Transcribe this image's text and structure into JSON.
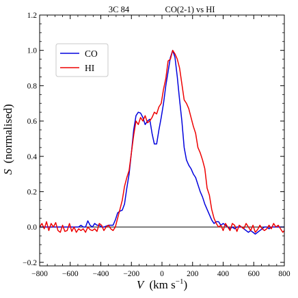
{
  "chart_data": {
    "type": "line",
    "title_left": "3C 84",
    "title_right": "CO(2-1) vs HI",
    "xlabel_var": "V",
    "xlabel_unit_base": "(km s",
    "xlabel_unit_sup": "−1",
    "xlabel_unit_end": ")",
    "ylabel_var": "S",
    "ylabel_rest": "(normalised)",
    "xlim": [
      -800,
      800
    ],
    "ylim": [
      -0.22,
      1.2
    ],
    "xticks": [
      -800,
      -600,
      -400,
      -200,
      0,
      200,
      400,
      600,
      800
    ],
    "xtick_labels": [
      "−800",
      "−600",
      "−400",
      "−200",
      "0",
      "200",
      "400",
      "600",
      "800"
    ],
    "yticks": [
      -0.2,
      0.0,
      0.2,
      0.4,
      0.6,
      0.8,
      1.0,
      1.2
    ],
    "ytick_labels": [
      "−0.2",
      "0.0",
      "0.2",
      "0.4",
      "0.6",
      "0.8",
      "1.0",
      "1.2"
    ],
    "zero_line": 0.0,
    "legend_position": "upper-left",
    "series": [
      {
        "name": "CO",
        "color": "#0000dd",
        "x": [
          -800,
          -785,
          -770,
          -755,
          -740,
          -725,
          -710,
          -695,
          -680,
          -665,
          -650,
          -635,
          -620,
          -605,
          -590,
          -575,
          -560,
          -545,
          -530,
          -515,
          -500,
          -485,
          -470,
          -455,
          -440,
          -425,
          -410,
          -395,
          -380,
          -365,
          -350,
          -335,
          -320,
          -305,
          -290,
          -275,
          -260,
          -245,
          -230,
          -215,
          -200,
          -185,
          -170,
          -155,
          -140,
          -125,
          -110,
          -95,
          -80,
          -65,
          -50,
          -35,
          -20,
          -5,
          10,
          25,
          40,
          55,
          70,
          85,
          100,
          115,
          130,
          145,
          160,
          175,
          190,
          205,
          220,
          235,
          250,
          265,
          280,
          295,
          310,
          325,
          340,
          355,
          370,
          385,
          400,
          415,
          430,
          445,
          460,
          475,
          490,
          505,
          520,
          535,
          550,
          565,
          580,
          595,
          610,
          625,
          640,
          655,
          670,
          685,
          700,
          715,
          730,
          745,
          760,
          775,
          790,
          800
        ],
        "y": [
          0.0,
          0.0,
          0.0,
          0.0,
          0.0,
          0.0,
          0.0,
          0.0,
          0.0,
          0.0,
          0.0,
          0.0,
          0.0,
          0.0,
          0.0,
          0.0,
          0.0,
          0.0,
          0.01,
          0.0,
          0.0,
          0.035,
          0.01,
          0.0,
          0.02,
          0.01,
          0.01,
          0.0,
          0.0,
          0.005,
          0.01,
          0.01,
          0.01,
          0.04,
          0.08,
          0.09,
          0.095,
          0.13,
          0.22,
          0.3,
          0.42,
          0.55,
          0.63,
          0.65,
          0.645,
          0.62,
          0.58,
          0.6,
          0.61,
          0.53,
          0.47,
          0.47,
          0.55,
          0.62,
          0.7,
          0.8,
          0.88,
          0.96,
          1.0,
          0.96,
          0.85,
          0.72,
          0.6,
          0.45,
          0.38,
          0.35,
          0.33,
          0.3,
          0.28,
          0.24,
          0.2,
          0.17,
          0.13,
          0.1,
          0.07,
          0.04,
          0.02,
          0.03,
          0.03,
          0.01,
          0.02,
          0.01,
          0.0,
          -0.01,
          0.0,
          -0.01,
          0.0,
          0.0,
          0.0,
          -0.01,
          -0.02,
          -0.03,
          -0.02,
          -0.03,
          -0.04,
          -0.03,
          -0.02,
          -0.01,
          0.0,
          0.0,
          -0.01,
          0.0,
          0.0,
          0.0,
          0.0,
          0.0,
          0.0,
          0.0
        ]
      },
      {
        "name": "HI",
        "color": "#ee0000",
        "x": [
          -800,
          -785,
          -770,
          -755,
          -740,
          -725,
          -710,
          -695,
          -680,
          -665,
          -650,
          -635,
          -620,
          -605,
          -590,
          -575,
          -560,
          -545,
          -530,
          -515,
          -500,
          -485,
          -470,
          -455,
          -440,
          -425,
          -410,
          -395,
          -380,
          -365,
          -350,
          -335,
          -320,
          -305,
          -290,
          -275,
          -260,
          -245,
          -230,
          -215,
          -200,
          -185,
          -170,
          -155,
          -140,
          -125,
          -110,
          -95,
          -80,
          -65,
          -50,
          -35,
          -20,
          -5,
          10,
          25,
          40,
          55,
          70,
          85,
          100,
          115,
          130,
          145,
          160,
          175,
          190,
          205,
          220,
          235,
          250,
          265,
          280,
          295,
          310,
          325,
          340,
          355,
          370,
          385,
          400,
          415,
          430,
          445,
          460,
          475,
          490,
          505,
          520,
          535,
          550,
          565,
          580,
          595,
          610,
          625,
          640,
          655,
          670,
          685,
          700,
          715,
          730,
          745,
          760,
          775,
          790,
          800
        ],
        "y": [
          0.0,
          0.02,
          -0.01,
          0.03,
          -0.02,
          0.02,
          0.0,
          0.025,
          -0.02,
          -0.03,
          0.01,
          -0.025,
          -0.02,
          0.02,
          -0.025,
          0.0,
          -0.03,
          -0.01,
          -0.02,
          -0.01,
          -0.03,
          0.0,
          -0.015,
          -0.02,
          -0.01,
          -0.025,
          0.02,
          0.01,
          -0.02,
          0.0,
          0.01,
          -0.01,
          -0.02,
          0.0,
          0.05,
          0.1,
          0.15,
          0.23,
          0.28,
          0.32,
          0.42,
          0.52,
          0.6,
          0.58,
          0.62,
          0.6,
          0.63,
          0.59,
          0.6,
          0.62,
          0.65,
          0.64,
          0.68,
          0.7,
          0.78,
          0.84,
          0.94,
          0.95,
          1.0,
          0.98,
          0.95,
          0.9,
          0.81,
          0.72,
          0.7,
          0.67,
          0.62,
          0.57,
          0.53,
          0.45,
          0.42,
          0.38,
          0.33,
          0.22,
          0.18,
          0.1,
          0.05,
          0.02,
          0.0,
          0.01,
          -0.02,
          0.02,
          0.0,
          -0.02,
          0.02,
          0.01,
          -0.025,
          0.01,
          0.0,
          -0.01,
          0.02,
          0.0,
          -0.02,
          0.01,
          -0.03,
          -0.015,
          0.01,
          -0.01,
          -0.02,
          -0.01,
          0.01,
          -0.01,
          0.02,
          0.0,
          0.01,
          -0.01,
          -0.03,
          -0.02
        ]
      }
    ]
  }
}
